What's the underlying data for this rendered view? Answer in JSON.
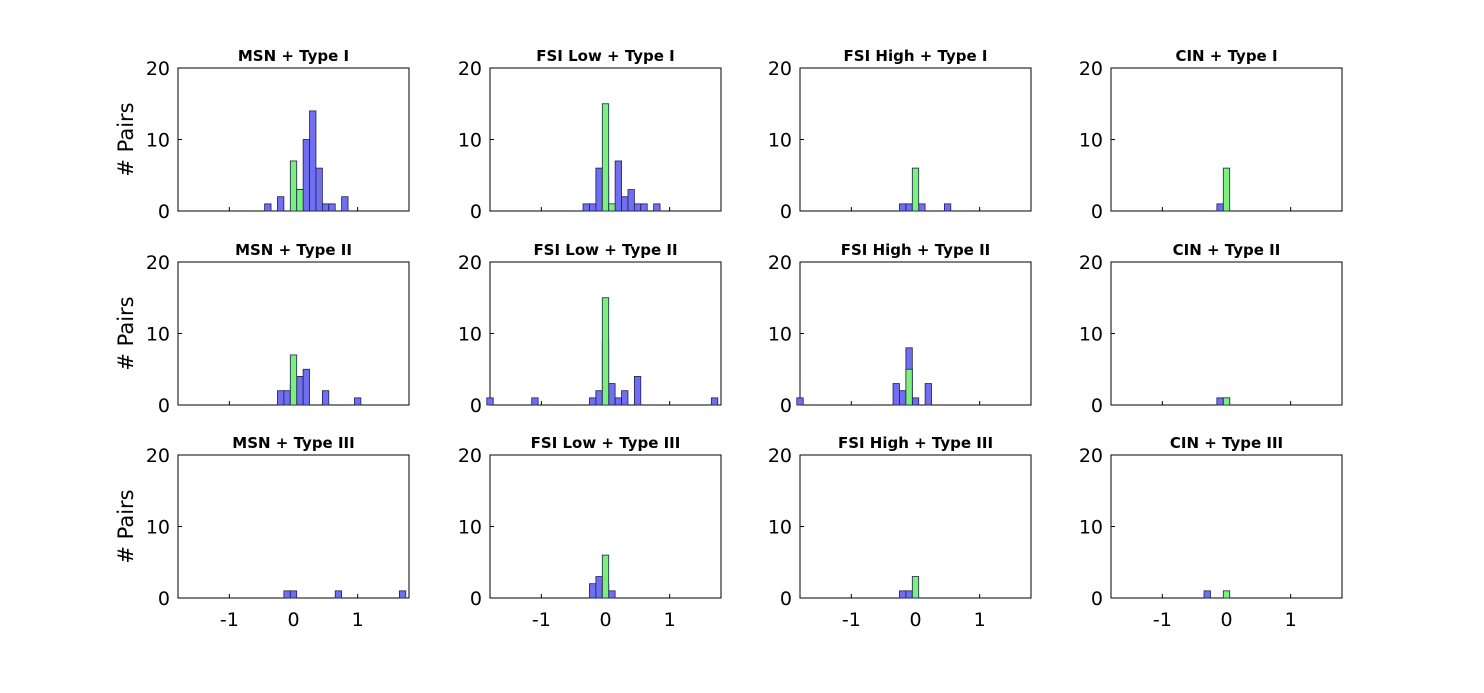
{
  "chart_data": {
    "type": "bar",
    "layout": "3 rows x 4 columns grid of histograms",
    "ylabel": "# Pairs",
    "ylim": [
      0,
      20
    ],
    "yticks": [
      0,
      10,
      20
    ],
    "xlim": [
      -1.8,
      1.8
    ],
    "xticks": [
      -1,
      0,
      1
    ],
    "bin_width": 0.1,
    "colors": {
      "blue": "#6f6ff0",
      "green": "#7cf07c",
      "edge": "#1e1e50"
    },
    "panels": [
      {
        "title": "MSN + Type I",
        "series": [
          {
            "color": "blue",
            "bars": [
              {
                "x": -0.4,
                "v": 1
              },
              {
                "x": -0.2,
                "v": 2
              },
              {
                "x": 0.1,
                "v": 3
              },
              {
                "x": 0.2,
                "v": 10
              },
              {
                "x": 0.3,
                "v": 14
              },
              {
                "x": 0.4,
                "v": 6
              },
              {
                "x": 0.5,
                "v": 1
              },
              {
                "x": 0.6,
                "v": 1
              },
              {
                "x": 0.8,
                "v": 2
              }
            ]
          },
          {
            "color": "green",
            "bars": [
              {
                "x": 0.0,
                "v": 7
              },
              {
                "x": 0.1,
                "v": 3
              }
            ]
          }
        ]
      },
      {
        "title": "FSI Low + Type I",
        "series": [
          {
            "color": "blue",
            "bars": [
              {
                "x": -0.3,
                "v": 1
              },
              {
                "x": -0.2,
                "v": 1
              },
              {
                "x": -0.1,
                "v": 6
              },
              {
                "x": 0.0,
                "v": 5
              },
              {
                "x": 0.2,
                "v": 7
              },
              {
                "x": 0.3,
                "v": 2
              },
              {
                "x": 0.4,
                "v": 3
              },
              {
                "x": 0.5,
                "v": 1
              },
              {
                "x": 0.6,
                "v": 1
              },
              {
                "x": 0.8,
                "v": 1
              }
            ]
          },
          {
            "color": "green",
            "bars": [
              {
                "x": 0.0,
                "v": 15
              },
              {
                "x": 0.1,
                "v": 1
              }
            ]
          }
        ]
      },
      {
        "title": "FSI High + Type I",
        "series": [
          {
            "color": "blue",
            "bars": [
              {
                "x": -0.2,
                "v": 1
              },
              {
                "x": -0.1,
                "v": 1
              },
              {
                "x": 0.0,
                "v": 1
              },
              {
                "x": 0.1,
                "v": 1
              },
              {
                "x": 0.5,
                "v": 1
              }
            ]
          },
          {
            "color": "green",
            "bars": [
              {
                "x": 0.0,
                "v": 6
              }
            ]
          }
        ]
      },
      {
        "title": "CIN + Type I",
        "series": [
          {
            "color": "blue",
            "bars": [
              {
                "x": -0.1,
                "v": 1
              }
            ]
          },
          {
            "color": "green",
            "bars": [
              {
                "x": 0.0,
                "v": 6
              }
            ]
          }
        ]
      },
      {
        "title": "MSN + Type II",
        "series": [
          {
            "color": "blue",
            "bars": [
              {
                "x": -0.2,
                "v": 2
              },
              {
                "x": -0.1,
                "v": 2
              },
              {
                "x": 0.0,
                "v": 3
              },
              {
                "x": 0.1,
                "v": 4
              },
              {
                "x": 0.2,
                "v": 5
              },
              {
                "x": 0.5,
                "v": 2
              },
              {
                "x": 1.0,
                "v": 1
              }
            ]
          },
          {
            "color": "green",
            "bars": [
              {
                "x": 0.0,
                "v": 7
              }
            ]
          }
        ]
      },
      {
        "title": "FSI Low + Type II",
        "series": [
          {
            "color": "blue",
            "bars": [
              {
                "x": -1.8,
                "v": 1
              },
              {
                "x": -1.1,
                "v": 1
              },
              {
                "x": -0.2,
                "v": 1
              },
              {
                "x": -0.1,
                "v": 2
              },
              {
                "x": 0.0,
                "v": 9
              },
              {
                "x": 0.1,
                "v": 3
              },
              {
                "x": 0.2,
                "v": 1
              },
              {
                "x": 0.3,
                "v": 2
              },
              {
                "x": 0.5,
                "v": 4
              },
              {
                "x": 1.7,
                "v": 1
              }
            ]
          },
          {
            "color": "green",
            "bars": [
              {
                "x": 0.0,
                "v": 15
              }
            ]
          }
        ]
      },
      {
        "title": "FSI High + Type II",
        "series": [
          {
            "color": "blue",
            "bars": [
              {
                "x": -1.8,
                "v": 1
              },
              {
                "x": -0.3,
                "v": 3
              },
              {
                "x": -0.2,
                "v": 2
              },
              {
                "x": -0.1,
                "v": 8
              },
              {
                "x": 0.0,
                "v": 1
              },
              {
                "x": 0.2,
                "v": 3
              }
            ]
          },
          {
            "color": "green",
            "bars": [
              {
                "x": -0.1,
                "v": 5
              }
            ]
          }
        ]
      },
      {
        "title": "CIN + Type II",
        "series": [
          {
            "color": "blue",
            "bars": [
              {
                "x": -0.1,
                "v": 1
              },
              {
                "x": 0.0,
                "v": 1
              }
            ]
          },
          {
            "color": "green",
            "bars": [
              {
                "x": 0.0,
                "v": 1
              }
            ]
          }
        ]
      },
      {
        "title": "MSN + Type III",
        "series": [
          {
            "color": "blue",
            "bars": [
              {
                "x": -0.1,
                "v": 1
              },
              {
                "x": 0.0,
                "v": 1
              },
              {
                "x": 0.7,
                "v": 1
              },
              {
                "x": 1.7,
                "v": 1
              }
            ]
          },
          {
            "color": "green",
            "bars": []
          }
        ]
      },
      {
        "title": "FSI Low + Type III",
        "series": [
          {
            "color": "blue",
            "bars": [
              {
                "x": -0.2,
                "v": 2
              },
              {
                "x": -0.1,
                "v": 3
              },
              {
                "x": 0.0,
                "v": 2
              },
              {
                "x": 0.1,
                "v": 1
              }
            ]
          },
          {
            "color": "green",
            "bars": [
              {
                "x": 0.0,
                "v": 6
              }
            ]
          }
        ]
      },
      {
        "title": "FSI High + Type III",
        "series": [
          {
            "color": "blue",
            "bars": [
              {
                "x": -0.2,
                "v": 1
              },
              {
                "x": -0.1,
                "v": 1
              }
            ]
          },
          {
            "color": "green",
            "bars": [
              {
                "x": 0.0,
                "v": 3
              }
            ]
          }
        ]
      },
      {
        "title": "CIN + Type III",
        "series": [
          {
            "color": "blue",
            "bars": [
              {
                "x": -0.3,
                "v": 1
              }
            ]
          },
          {
            "color": "green",
            "bars": [
              {
                "x": 0.0,
                "v": 1
              }
            ]
          }
        ]
      }
    ]
  }
}
